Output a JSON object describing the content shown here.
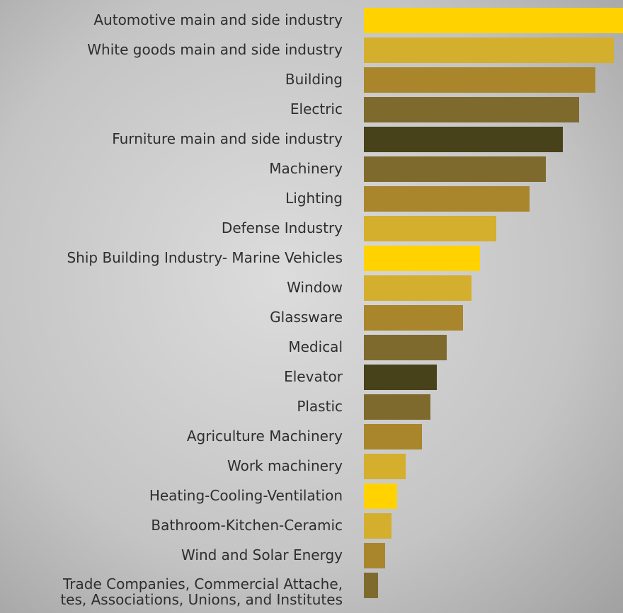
{
  "chart_data": {
    "type": "bar",
    "orientation": "horizontal",
    "categories": [
      "Automotive main and side industry",
      "White goods main and side industry",
      "Building",
      "Electric",
      "Furniture main and side industry",
      "Machinery",
      "Lighting",
      "Defense Industry",
      "Ship Building Industry- Marine Vehicles",
      "Window",
      "Glassware",
      "Medical",
      "Elevator",
      "Plastic",
      "Agriculture Machinery",
      "Work machinery",
      "Heating-Cooling-Ventilation",
      "Bathroom-Kitchen-Ceramic",
      "Wind and Solar Energy",
      "Trade Companies, Commercial Attache,\ntes, Associations, Unions, and Institutes"
    ],
    "values": [
      366,
      353,
      327,
      304,
      281,
      257,
      234,
      187,
      164,
      152,
      140,
      117,
      103,
      94,
      82,
      59,
      47,
      39,
      30,
      20
    ],
    "colors": [
      "#ffd200",
      "#d4ae2d",
      "#a9862c",
      "#7f6a2e",
      "#48421a",
      "#7f6a2e",
      "#a9862c",
      "#d4ae2d",
      "#ffd200",
      "#d4ae2d",
      "#a9862c",
      "#7f6a2e",
      "#48421a",
      "#7f6a2e",
      "#a9862c",
      "#d4ae2d",
      "#ffd200",
      "#d4ae2d",
      "#a9862c",
      "#7f6a2e"
    ]
  }
}
